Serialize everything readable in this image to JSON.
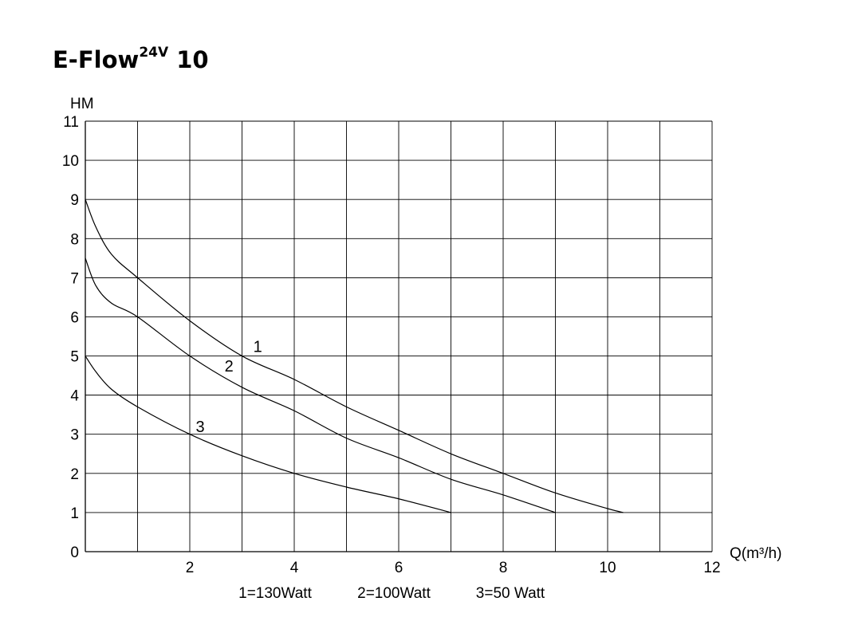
{
  "title": {
    "main": "E-Flow",
    "sup": "24V",
    "tail": " 10"
  },
  "chart_data": {
    "type": "line",
    "ylabel": "HM",
    "xlabel": "Q(m³/h)",
    "xlim": [
      0,
      12
    ],
    "ylim": [
      0,
      11
    ],
    "x_ticks": [
      2,
      4,
      6,
      8,
      10,
      12
    ],
    "y_ticks": [
      0,
      1,
      2,
      3,
      4,
      5,
      6,
      7,
      8,
      9,
      10,
      11
    ],
    "grid": true,
    "grid_x_step": 1,
    "grid_y_step": 1,
    "series": [
      {
        "name": "1",
        "label_pos": [
          3.3,
          5.25
        ],
        "x": [
          0,
          0.2,
          0.5,
          1,
          2,
          3,
          4,
          5,
          6,
          7,
          8,
          9,
          10,
          10.3
        ],
        "y": [
          9,
          8.3,
          7.6,
          7.0,
          5.9,
          5.0,
          4.4,
          3.7,
          3.1,
          2.5,
          2.0,
          1.5,
          1.1,
          1.0
        ]
      },
      {
        "name": "2",
        "label_pos": [
          2.75,
          4.75
        ],
        "x": [
          0,
          0.2,
          0.5,
          1,
          2,
          3,
          4,
          5,
          6,
          7,
          8,
          9
        ],
        "y": [
          7.5,
          6.8,
          6.35,
          6.0,
          5.0,
          4.2,
          3.6,
          2.9,
          2.4,
          1.85,
          1.45,
          1.0
        ]
      },
      {
        "name": "3",
        "label_pos": [
          2.2,
          3.2
        ],
        "x": [
          0,
          0.2,
          0.5,
          1,
          2,
          3,
          4,
          5,
          6,
          7
        ],
        "y": [
          5,
          4.6,
          4.15,
          3.7,
          3.0,
          2.45,
          2.0,
          1.65,
          1.35,
          1.0
        ]
      }
    ],
    "legend": [
      "1=130Watt",
      "2=100Watt",
      "3=50 Watt"
    ]
  }
}
